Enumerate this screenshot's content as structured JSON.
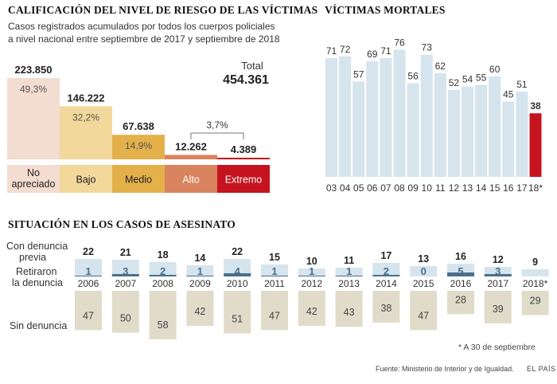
{
  "risk_panel": {
    "title": "CALIFICACIÓN DEL NIVEL DE RIESGO DE LAS VÍCTIMAS",
    "subtitle_line1": "Casos registrados acumulados por todos los cuerpos policiales",
    "subtitle_line2": "a nivel nacional entre septiembre de 2017 y septiembre de 2018",
    "total_label": "Total",
    "total_value": "454.361",
    "bracket_label": "3,7%"
  },
  "deaths_panel": {
    "title": "VÍCTIMAS MORTALES"
  },
  "murders_panel": {
    "title": "SITUACIÓN EN LOS CASOS DE ASESINATO",
    "label_complaint_1": "Con denuncia",
    "label_complaint_2": "previa",
    "label_withdrawn_1": "Retiraron",
    "label_withdrawn_2": "la denuncia",
    "label_no_complaint": "Sin denuncia"
  },
  "footnote": "* A 30 de septiembre",
  "source": "Fuente: Ministerio de Interior y de Igualdad.",
  "brand": "EL PAÍS",
  "colors": {
    "no_apreciado": "#f3dcd0",
    "bajo": "#f2d89a",
    "medio": "#e3b04a",
    "alto": "#d9835e",
    "extremo": "#c5141f",
    "bar_light": "#d5e4ed",
    "bar_dark": "#4a6f8c",
    "bar_highlight": "#c5141f",
    "no_complaint_bar": "#e0dcc9"
  },
  "chart_data": [
    {
      "type": "bar",
      "title": "CALIFICACIÓN DEL NIVEL DE RIESGO DE LAS VÍCTIMAS",
      "categories": [
        "No apreciado",
        "Bajo",
        "Medio",
        "Alto",
        "Extremo"
      ],
      "category_lines": [
        [
          "No",
          "apreciado"
        ],
        [
          "Bajo"
        ],
        [
          "Medio"
        ],
        [
          "Alto"
        ],
        [
          "Extremo"
        ]
      ],
      "values": [
        223850,
        146222,
        67638,
        12262,
        4389
      ],
      "value_labels": [
        "223.850",
        "146.222",
        "67.638",
        "12.262",
        "4.389"
      ],
      "percent_labels": [
        "49,3%",
        "32,2%",
        "14,9%",
        "",
        ""
      ],
      "total": 454361
    },
    {
      "type": "bar",
      "title": "VÍCTIMAS MORTALES",
      "categories": [
        "03",
        "04",
        "05",
        "06",
        "07",
        "08",
        "09",
        "10",
        "11",
        "12",
        "13",
        "14",
        "15",
        "16",
        "17",
        "18*"
      ],
      "values": [
        71,
        72,
        57,
        69,
        71,
        76,
        56,
        73,
        62,
        52,
        54,
        55,
        60,
        45,
        51,
        38
      ],
      "highlight_index": 15
    },
    {
      "type": "bar",
      "title": "SITUACIÓN EN LOS CASOS DE ASESINATO",
      "categories": [
        "2006",
        "2007",
        "2008",
        "2009",
        "2010",
        "2011",
        "2012",
        "2013",
        "2014",
        "2015",
        "2016",
        "2017",
        "2018*"
      ],
      "series": [
        {
          "name": "Con denuncia previa",
          "values": [
            22,
            21,
            18,
            14,
            22,
            15,
            10,
            11,
            17,
            13,
            16,
            12,
            9
          ]
        },
        {
          "name": "Retiraron la denuncia",
          "values": [
            1,
            3,
            2,
            1,
            4,
            1,
            1,
            1,
            2,
            0,
            5,
            3,
            null
          ]
        },
        {
          "name": "Sin denuncia",
          "values": [
            47,
            50,
            58,
            42,
            51,
            47,
            42,
            43,
            38,
            47,
            28,
            39,
            29
          ]
        }
      ]
    }
  ]
}
